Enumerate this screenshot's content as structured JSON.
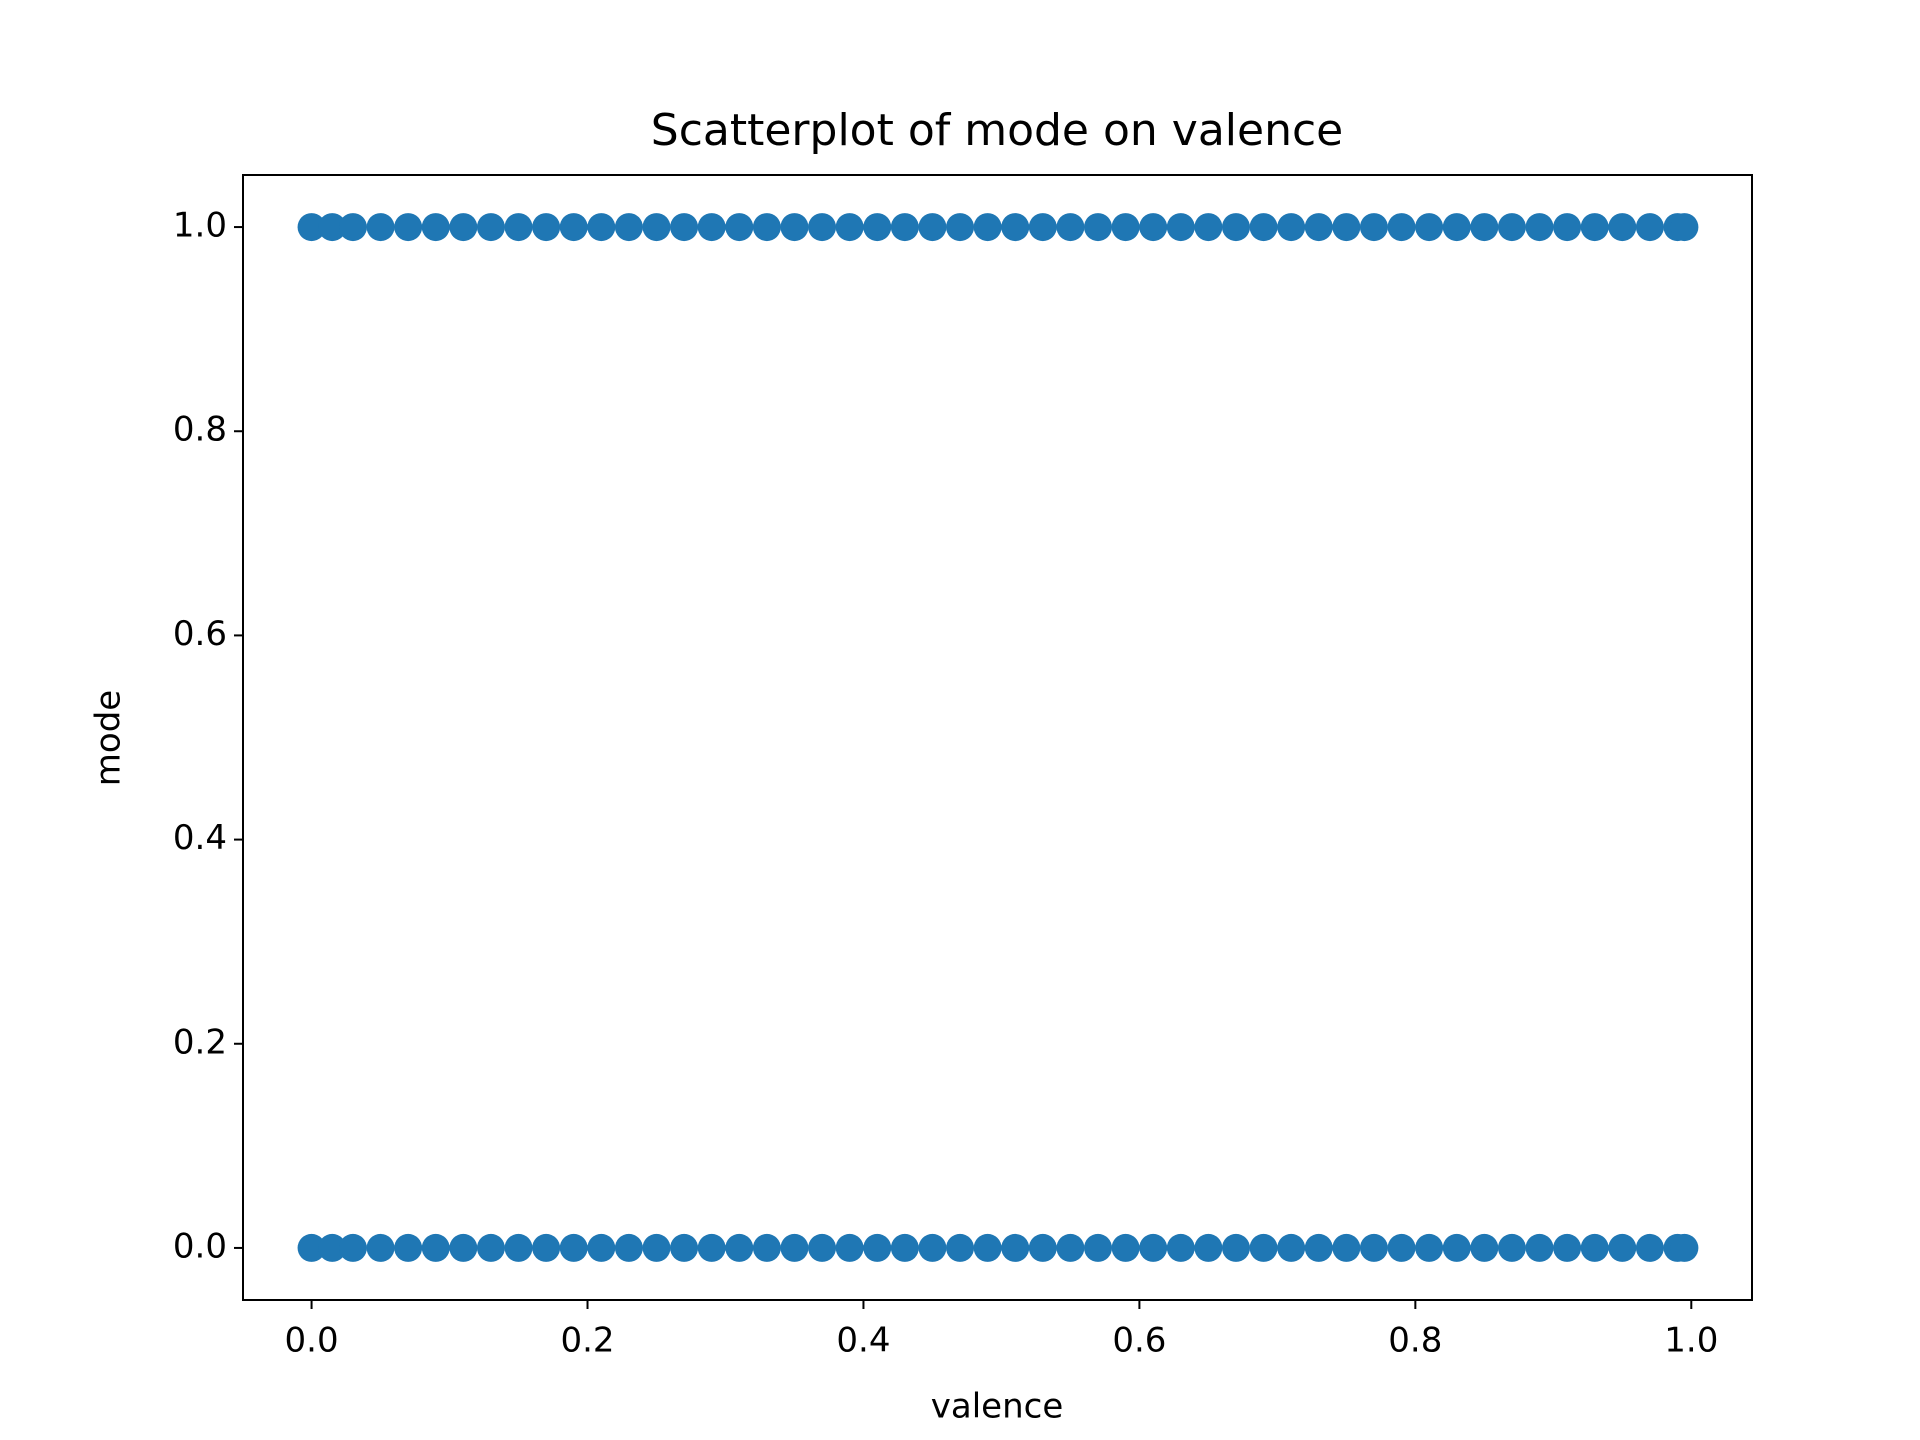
{
  "chart_data": {
    "type": "scatter",
    "title": "Scatterplot of mode on valence",
    "x_label": "valence",
    "y_label": "mode",
    "series": [
      {
        "color": "#1f77b4",
        "x": [
          0,
          0.015,
          0.03,
          0.05,
          0.07,
          0.09,
          0.11,
          0.13,
          0.15,
          0.17,
          0.19,
          0.21,
          0.23,
          0.25,
          0.27,
          0.29,
          0.31,
          0.33,
          0.35,
          0.37,
          0.39,
          0.41,
          0.43,
          0.45,
          0.47,
          0.49,
          0.51,
          0.53,
          0.55,
          0.57,
          0.59,
          0.61,
          0.63,
          0.65,
          0.67,
          0.69,
          0.71,
          0.73,
          0.75,
          0.77,
          0.79,
          0.81,
          0.83,
          0.85,
          0.87,
          0.89,
          0.91,
          0.93,
          0.95,
          0.97,
          0.99,
          0.995,
          0,
          0.015,
          0.03,
          0.05,
          0.07,
          0.09,
          0.11,
          0.13,
          0.15,
          0.17,
          0.19,
          0.21,
          0.23,
          0.25,
          0.27,
          0.29,
          0.31,
          0.33,
          0.35,
          0.37,
          0.39,
          0.41,
          0.43,
          0.45,
          0.47,
          0.49,
          0.51,
          0.53,
          0.55,
          0.57,
          0.59,
          0.61,
          0.63,
          0.65,
          0.67,
          0.69,
          0.71,
          0.73,
          0.75,
          0.77,
          0.79,
          0.81,
          0.83,
          0.85,
          0.87,
          0.89,
          0.91,
          0.93,
          0.95,
          0.97,
          0.99,
          0.995
        ],
        "values": [
          1,
          1,
          1,
          1,
          1,
          1,
          1,
          1,
          1,
          1,
          1,
          1,
          1,
          1,
          1,
          1,
          1,
          1,
          1,
          1,
          1,
          1,
          1,
          1,
          1,
          1,
          1,
          1,
          1,
          1,
          1,
          1,
          1,
          1,
          1,
          1,
          1,
          1,
          1,
          1,
          1,
          1,
          1,
          1,
          1,
          1,
          1,
          1,
          1,
          1,
          1,
          1,
          0,
          0,
          0,
          0,
          0,
          0,
          0,
          0,
          0,
          0,
          0,
          0,
          0,
          0,
          0,
          0,
          0,
          0,
          0,
          0,
          0,
          0,
          0,
          0,
          0,
          0,
          0,
          0,
          0,
          0,
          0,
          0,
          0,
          0,
          0,
          0,
          0,
          0,
          0,
          0,
          0,
          0,
          0,
          0,
          0,
          0,
          0,
          0,
          0,
          0,
          0,
          0
        ]
      }
    ],
    "xlim": [
      -0.0497,
      1.044
    ],
    "ylim": [
      -0.051,
      1.051
    ],
    "xticks": [
      {
        "value": 0,
        "label": "0.0"
      },
      0.2,
      0.4,
      0.6,
      0.8,
      {
        "value": 1,
        "label": "1.0"
      }
    ],
    "yticks": [
      {
        "value": 0,
        "label": "0.0"
      },
      0.2,
      0.4,
      0.6,
      0.8,
      {
        "value": 1,
        "label": "1.0"
      }
    ],
    "grid": false
  }
}
